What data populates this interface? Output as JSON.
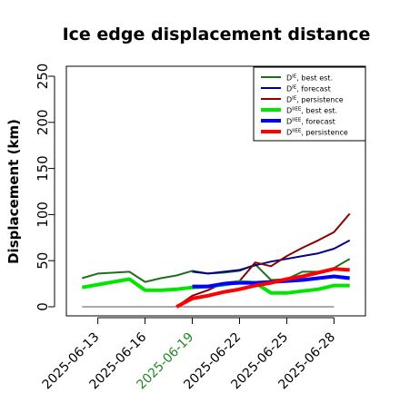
{
  "chart_data": {
    "type": "line",
    "title": "Ice edge displacement distance",
    "xlabel": "",
    "ylabel": "Displacement (km)",
    "ylim": [
      0,
      260
    ],
    "xlim": [
      "2025-06-11",
      "2025-06-30"
    ],
    "y_ticks": [
      0,
      50,
      100,
      150,
      200,
      250
    ],
    "x_ticks": [
      {
        "date": "2025-06-13",
        "label": "2025-06-13",
        "color": "#000000"
      },
      {
        "date": "2025-06-16",
        "label": "2025-06-16",
        "color": "#000000"
      },
      {
        "date": "2025-06-19",
        "label": "2025-06-19",
        "color": "#228B22"
      },
      {
        "date": "2025-06-22",
        "label": "2025-06-22",
        "color": "#000000"
      },
      {
        "date": "2025-06-25",
        "label": "2025-06-25",
        "color": "#000000"
      },
      {
        "date": "2025-06-28",
        "label": "2025-06-28",
        "color": "#000000"
      }
    ],
    "grid": false,
    "legend_position": "top-right",
    "reference_line": {
      "y": 0,
      "from": "2025-06-12",
      "to": "2025-06-28",
      "color": "#555555"
    },
    "series": [
      {
        "name": "D^IE, best est.",
        "legend_main": "D",
        "legend_sup": "IE",
        "legend_rest": ", best est.",
        "color": "#1f6e1f",
        "width": 2,
        "points": [
          [
            "2025-06-12",
            31
          ],
          [
            "2025-06-13",
            36
          ],
          [
            "2025-06-15",
            38
          ],
          [
            "2025-06-16",
            27
          ],
          [
            "2025-06-17",
            31
          ],
          [
            "2025-06-18",
            34
          ],
          [
            "2025-06-19",
            39
          ],
          [
            "2025-06-20",
            36
          ],
          [
            "2025-06-21",
            37
          ],
          [
            "2025-06-22",
            39
          ],
          [
            "2025-06-23",
            46
          ],
          [
            "2025-06-24",
            29
          ],
          [
            "2025-06-25",
            30
          ],
          [
            "2025-06-26",
            38
          ],
          [
            "2025-06-27",
            38
          ],
          [
            "2025-06-28",
            42
          ],
          [
            "2025-06-29",
            52
          ]
        ]
      },
      {
        "name": "D^IE, forecast",
        "legend_main": "D",
        "legend_sup": "IE",
        "legend_rest": ", forecast",
        "color": "#00008b",
        "width": 2,
        "points": [
          [
            "2025-06-19",
            38
          ],
          [
            "2025-06-20",
            36
          ],
          [
            "2025-06-21",
            38
          ],
          [
            "2025-06-22",
            40
          ],
          [
            "2025-06-23",
            45
          ],
          [
            "2025-06-24",
            49
          ],
          [
            "2025-06-25",
            52
          ],
          [
            "2025-06-26",
            55
          ],
          [
            "2025-06-27",
            58
          ],
          [
            "2025-06-28",
            63
          ],
          [
            "2025-06-29",
            72
          ]
        ]
      },
      {
        "name": "D^IE, persistence",
        "legend_main": "D",
        "legend_sup": "IE",
        "legend_rest": ", persistence",
        "color": "#8b0000",
        "width": 2,
        "points": [
          [
            "2025-06-18",
            0
          ],
          [
            "2025-06-19",
            12
          ],
          [
            "2025-06-20",
            18
          ],
          [
            "2025-06-21",
            26
          ],
          [
            "2025-06-22",
            28
          ],
          [
            "2025-06-23",
            48
          ],
          [
            "2025-06-24",
            44
          ],
          [
            "2025-06-25",
            55
          ],
          [
            "2025-06-26",
            64
          ],
          [
            "2025-06-27",
            72
          ],
          [
            "2025-06-28",
            81
          ],
          [
            "2025-06-29",
            101
          ]
        ]
      },
      {
        "name": "D^IIEE, best est.",
        "legend_main": "D",
        "legend_sup": "IIEE",
        "legend_rest": ", best est.",
        "color": "#00e600",
        "width": 4,
        "points": [
          [
            "2025-06-12",
            21
          ],
          [
            "2025-06-13",
            24
          ],
          [
            "2025-06-15",
            30
          ],
          [
            "2025-06-16",
            18
          ],
          [
            "2025-06-17",
            18
          ],
          [
            "2025-06-18",
            19
          ],
          [
            "2025-06-19",
            21
          ],
          [
            "2025-06-20",
            22
          ],
          [
            "2025-06-21",
            24
          ],
          [
            "2025-06-22",
            27
          ],
          [
            "2025-06-23",
            26
          ],
          [
            "2025-06-24",
            15
          ],
          [
            "2025-06-25",
            15
          ],
          [
            "2025-06-26",
            17
          ],
          [
            "2025-06-27",
            19
          ],
          [
            "2025-06-28",
            23
          ],
          [
            "2025-06-29",
            23
          ]
        ]
      },
      {
        "name": "D^IIEE, forecast",
        "legend_main": "D",
        "legend_sup": "IIEE",
        "legend_rest": ", forecast",
        "color": "#0000ff",
        "width": 4,
        "points": [
          [
            "2025-06-19",
            22
          ],
          [
            "2025-06-20",
            22
          ],
          [
            "2025-06-21",
            25
          ],
          [
            "2025-06-22",
            26
          ],
          [
            "2025-06-23",
            26
          ],
          [
            "2025-06-24",
            27
          ],
          [
            "2025-06-25",
            28
          ],
          [
            "2025-06-26",
            29
          ],
          [
            "2025-06-27",
            31
          ],
          [
            "2025-06-28",
            33
          ],
          [
            "2025-06-29",
            31
          ]
        ]
      },
      {
        "name": "D^IIEE, persistence",
        "legend_main": "D",
        "legend_sup": "IIEE",
        "legend_rest": ", persistence",
        "color": "#ff0000",
        "width": 4,
        "points": [
          [
            "2025-06-18",
            0
          ],
          [
            "2025-06-19",
            9
          ],
          [
            "2025-06-20",
            12
          ],
          [
            "2025-06-21",
            16
          ],
          [
            "2025-06-22",
            19
          ],
          [
            "2025-06-23",
            23
          ],
          [
            "2025-06-24",
            26
          ],
          [
            "2025-06-25",
            30
          ],
          [
            "2025-06-26",
            33
          ],
          [
            "2025-06-27",
            37
          ],
          [
            "2025-06-28",
            41
          ],
          [
            "2025-06-29",
            40
          ]
        ]
      }
    ]
  }
}
